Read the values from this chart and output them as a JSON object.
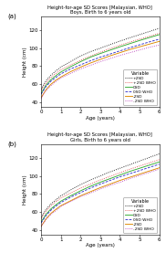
{
  "title_a": "Height-for-age SD Scores [Malaysian, WHO]",
  "subtitle_a": "Boys, Birth to 6 years old",
  "title_b": "Height-for-age SD Scores [Malaysian, WHO]",
  "subtitle_b": "Girls, Birth to 6 years old",
  "xlabel": "Age (years)",
  "ylabel_a": "Height (cm)",
  "ylabel_b": "Height (cm)",
  "panel_a_label": "(a)",
  "panel_b_label": "(b)",
  "age": [
    0,
    0.25,
    0.5,
    0.75,
    1.0,
    1.5,
    2.0,
    2.5,
    3.0,
    3.5,
    4.0,
    4.5,
    5.0,
    5.5,
    6.0
  ],
  "boys": {
    "plus2sd": [
      54.7,
      64.0,
      70.1,
      74.8,
      79.0,
      85.2,
      91.2,
      96.1,
      99.9,
      104.0,
      107.8,
      111.5,
      115.0,
      118.5,
      122.0
    ],
    "plus2sd_who": [
      53.0,
      61.5,
      67.6,
      72.0,
      76.0,
      81.5,
      86.5,
      91.2,
      95.5,
      99.5,
      103.2,
      106.7,
      110.0,
      113.2,
      116.5
    ],
    "zero_sd": [
      49.9,
      59.0,
      65.0,
      69.5,
      73.5,
      79.5,
      85.0,
      90.0,
      94.0,
      97.8,
      101.5,
      105.0,
      108.5,
      111.8,
      115.0
    ],
    "zero_sd_who": [
      49.0,
      57.5,
      63.5,
      67.5,
      71.5,
      77.0,
      81.5,
      86.0,
      90.0,
      93.5,
      97.0,
      100.5,
      103.7,
      107.0,
      110.0
    ],
    "minus2sd": [
      45.2,
      54.0,
      60.0,
      64.5,
      68.0,
      74.0,
      79.0,
      83.5,
      87.5,
      91.5,
      95.0,
      98.5,
      101.5,
      104.5,
      107.5
    ],
    "minus2sd_who": [
      44.0,
      53.0,
      58.5,
      63.0,
      67.0,
      72.0,
      77.0,
      81.0,
      85.0,
      88.5,
      92.0,
      95.0,
      98.0,
      101.0,
      103.5
    ]
  },
  "girls": {
    "plus2sd": [
      54.0,
      63.0,
      69.0,
      73.5,
      78.0,
      84.5,
      90.5,
      95.5,
      100.0,
      104.5,
      108.5,
      112.5,
      116.5,
      120.5,
      124.5
    ],
    "plus2sd_who": [
      52.5,
      61.0,
      67.0,
      71.5,
      75.5,
      81.0,
      86.5,
      91.0,
      95.5,
      99.5,
      103.5,
      107.5,
      111.0,
      114.5,
      118.0
    ],
    "zero_sd": [
      49.0,
      57.5,
      63.5,
      68.0,
      72.0,
      78.0,
      83.5,
      88.5,
      93.0,
      97.0,
      101.0,
      105.0,
      108.5,
      112.0,
      115.5
    ],
    "zero_sd_who": [
      48.0,
      56.0,
      62.0,
      66.5,
      70.5,
      76.5,
      81.5,
      86.5,
      91.0,
      95.0,
      99.0,
      102.5,
      106.0,
      109.5,
      113.0
    ],
    "minus2sd": [
      44.0,
      52.5,
      58.5,
      63.0,
      67.0,
      72.5,
      78.0,
      82.5,
      87.0,
      91.0,
      95.0,
      98.5,
      102.0,
      105.5,
      109.0
    ],
    "minus2sd_who": [
      44.0,
      51.5,
      57.5,
      61.5,
      66.0,
      71.5,
      77.0,
      81.0,
      85.5,
      89.5,
      93.0,
      97.0,
      100.5,
      104.0,
      107.5
    ]
  },
  "colors": {
    "plus2sd": "#111111",
    "plus2sd_who": "#dd4444",
    "zero_sd": "#33aa33",
    "zero_sd_who": "#3333cc",
    "minus2sd": "#dd8800",
    "minus2sd_who": "#bb44bb"
  },
  "legend_labels": [
    "+2SD",
    "+2SD WHO",
    "0SD",
    "0SD WHO",
    "-2SD",
    "-2SD WHO"
  ],
  "ylim": [
    35,
    135
  ],
  "yticks": [
    40,
    60,
    80,
    100,
    120
  ],
  "xlim": [
    0,
    6
  ],
  "xticks": [
    0,
    1,
    2,
    3,
    4,
    5,
    6
  ]
}
